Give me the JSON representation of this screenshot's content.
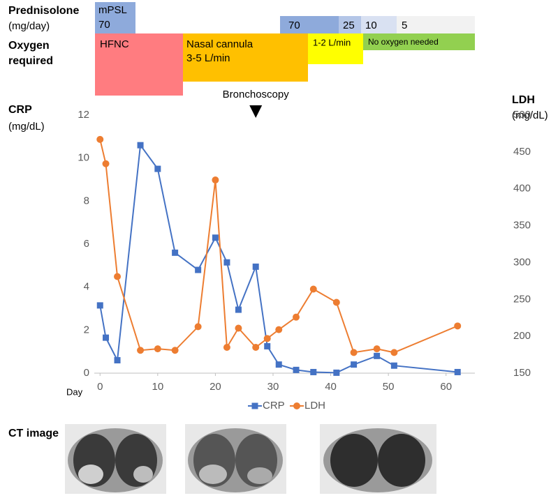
{
  "chart_data": {
    "type": "line",
    "x": [
      0,
      1,
      3,
      7,
      10,
      13,
      17,
      20,
      22,
      24,
      27,
      29,
      31,
      34,
      37,
      41,
      44,
      48,
      51,
      62
    ],
    "xlim": [
      -1,
      65
    ],
    "xticks": [
      0,
      10,
      20,
      30,
      40,
      50,
      60
    ],
    "xlabel": "Day",
    "ylim": [
      0,
      12
    ],
    "yticks": [
      0,
      2,
      4,
      6,
      8,
      10,
      12
    ],
    "y2lim": [
      150,
      500
    ],
    "y2ticks": [
      150,
      200,
      250,
      300,
      350,
      400,
      450,
      500
    ],
    "ylabel": [
      "CRP",
      "(mg/dL)"
    ],
    "y2label": [
      "LDH",
      "(mg/dL)"
    ],
    "series": [
      {
        "name": "CRP",
        "color": "#4472c4",
        "marker": "square",
        "values": [
          3.15,
          1.65,
          0.6,
          10.6,
          9.5,
          5.6,
          4.8,
          6.3,
          5.15,
          2.95,
          4.95,
          1.25,
          0.4,
          0.15,
          0.05,
          0.02,
          0.4,
          0.8,
          0.35,
          0.05
        ]
      },
      {
        "name": "LDH",
        "color": "#ed7d31",
        "marker": "circle",
        "axis": "y2",
        "values": [
          467,
          434,
          281,
          181,
          183,
          181,
          213,
          412,
          185,
          211,
          185,
          197,
          209,
          226,
          264,
          246,
          178,
          183,
          178,
          214
        ]
      }
    ],
    "annotation": {
      "text": "Bronchoscopy",
      "x": 27
    },
    "grid": false,
    "legend": "bottom"
  },
  "timeline": {
    "prednisolone_label": [
      "Prednisolone",
      "(mg/day)"
    ],
    "prednisolone": [
      [
        "mPSL",
        "70"
      ],
      [
        "70"
      ],
      [
        "25"
      ],
      [
        "10"
      ],
      [
        "5"
      ]
    ],
    "oxygen_label": [
      "Oxygen",
      "required"
    ],
    "oxygen": [
      [
        "HFNC"
      ],
      [
        "Nasal cannula",
        "3-5 L/min"
      ],
      [
        "1-2 L/min"
      ],
      [
        "No oxygen needed"
      ]
    ]
  },
  "ct": {
    "label": "CT image"
  }
}
